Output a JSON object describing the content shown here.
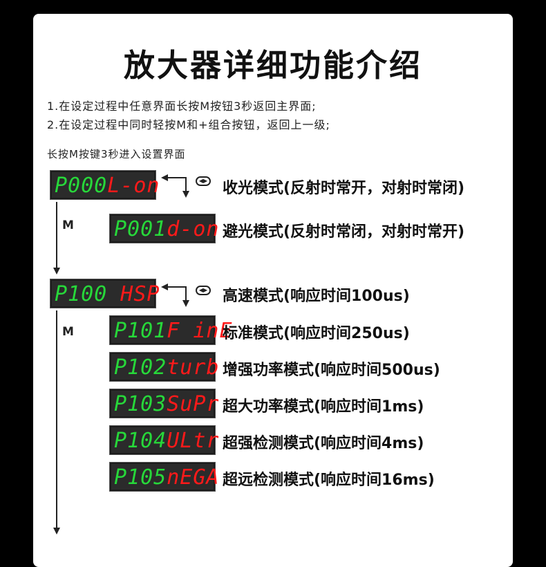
{
  "title": "放大器详细功能介绍",
  "notes": [
    "1.在设定过程中任意界面长按M按钮3秒返回主界面;",
    "2.在设定过程中同时轻按M和+组合按钮，返回上一级;"
  ],
  "enter_hint": "长按M按键3秒进入设置界面",
  "m_key": "M",
  "colors": {
    "code": "#27d83a",
    "value": "#ff1a1a",
    "display_bg": "#2b2b2b"
  },
  "toggle_icon": "left-right-toggle-icon",
  "groups": [
    {
      "items": [
        {
          "code": "P000",
          "value": "L-on",
          "label": "收光模式(反射时常开，对射时常闭)"
        },
        {
          "code": "P001",
          "value": "d-on",
          "label": "避光模式(反射时常闭，对射时常开)"
        }
      ]
    },
    {
      "items": [
        {
          "code": "P100",
          "value": " HSP",
          "label": "高速模式(响应时间100us)"
        },
        {
          "code": "P101",
          "value": "F inE",
          "label": "标准模式(响应时间250us)"
        },
        {
          "code": "P102",
          "value": "turb",
          "label": "增强功率模式(响应时间500us)"
        },
        {
          "code": "P103",
          "value": "SuPr",
          "label": "超大功率模式(响应时间1ms)"
        },
        {
          "code": "P104",
          "value": "ULtr",
          "label": "超强检测模式(响应时间4ms)"
        },
        {
          "code": "P105",
          "value": "nEGA",
          "label": "超远检测模式(响应时间16ms)"
        }
      ]
    }
  ]
}
